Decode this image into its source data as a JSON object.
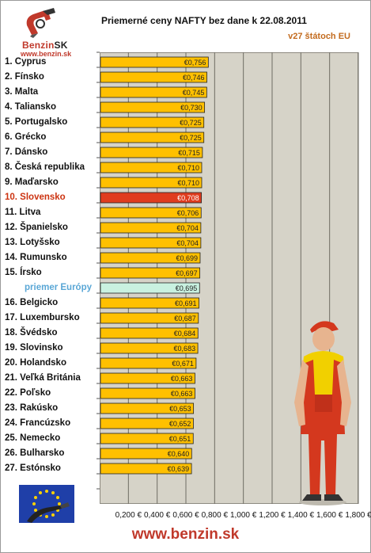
{
  "header": {
    "logo_name": "Benzin",
    "logo_suffix": "SK",
    "logo_url": "www.benzin.sk",
    "title": "Priemerné ceny NAFTY bez dane k 22.08.2011",
    "subtitle": "v27 štátoch EU"
  },
  "footer": {
    "url": "www.benzin.sk"
  },
  "colors": {
    "bar": "#ffc000",
    "bar_highlight": "#e03c1e",
    "bar_average": "#c9f1e0",
    "plot_bg": "#d6d3c8",
    "label_highlight": "#cc3311",
    "label_average": "#5aa7d6"
  },
  "chart_data": {
    "type": "bar",
    "orientation": "horizontal",
    "categories": [
      "1. Cyprus",
      "2. Fínsko",
      "3. Malta",
      "4. Taliansko",
      "5. Portugalsko",
      "6. Grécko",
      "7. Dánsko",
      "8. Česká republika",
      "9. Maďarsko",
      "10. Slovensko",
      "11. Litva",
      "12. Španielsko",
      "13. Lotyšsko",
      "14. Rumunsko",
      "15. Írsko",
      "priemer Európy",
      "16. Belgicko",
      "17. Luxembursko",
      "18. Švédsko",
      "19. Slovinsko",
      "20. Holandsko",
      "21. Veľká Británia",
      "22. Poľsko",
      "23. Rakúsko",
      "24. Francúzsko",
      "25. Nemecko",
      "26. Bulharsko",
      "27. Estónsko"
    ],
    "values": [
      0.756,
      0.746,
      0.745,
      0.73,
      0.725,
      0.725,
      0.715,
      0.71,
      0.71,
      0.708,
      0.706,
      0.704,
      0.704,
      0.699,
      0.697,
      0.695,
      0.691,
      0.687,
      0.684,
      0.683,
      0.671,
      0.663,
      0.663,
      0.653,
      0.652,
      0.651,
      0.64,
      0.639
    ],
    "value_labels": [
      "€0,756",
      "€0,746",
      "€0,745",
      "€0,730",
      "€0,725",
      "€0,725",
      "€0,715",
      "€0,710",
      "€0,710",
      "€0,708",
      "€0,706",
      "€0,704",
      "€0,704",
      "€0,699",
      "€0,697",
      "€0,695",
      "€0,691",
      "€0,687",
      "€0,684",
      "€0,683",
      "€0,671",
      "€0,663",
      "€0,663",
      "€0,653",
      "€0,652",
      "€0,651",
      "€0,640",
      "€0,639"
    ],
    "highlight_index": 9,
    "average_index": 15,
    "x_ticks": [
      0.2,
      0.4,
      0.6,
      0.8,
      1.0,
      1.2,
      1.4,
      1.6,
      1.8
    ],
    "x_tick_labels": [
      "0,200 €",
      "0,400 €",
      "0,600 €",
      "0,800 €",
      "1,000 €",
      "1,200 €",
      "1,400 €",
      "1,600 €",
      "1,800 €"
    ],
    "xlim": [
      0,
      1.8
    ],
    "grid": true
  }
}
